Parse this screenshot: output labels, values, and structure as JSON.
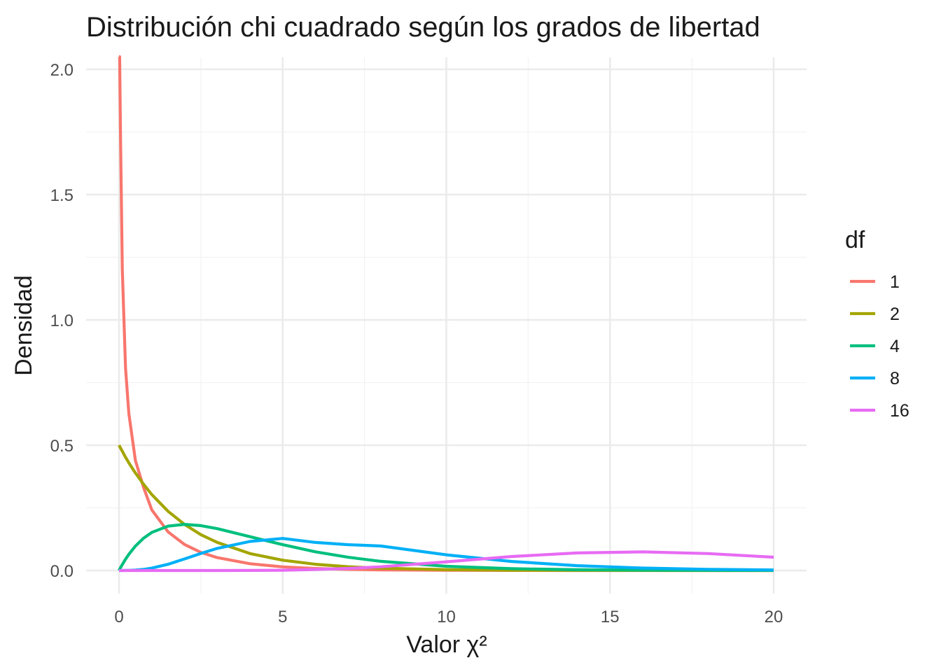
{
  "chart_data": {
    "type": "line",
    "title": "Distribución chi cuadrado según los grados de libertad",
    "xlabel": "Valor χ²",
    "ylabel": "Densidad",
    "xlim": [
      0,
      20
    ],
    "ylim": [
      0,
      2.05
    ],
    "x_ticks": [
      0,
      5,
      10,
      15,
      20
    ],
    "x_tick_labels": [
      "0",
      "5",
      "10",
      "15",
      "20"
    ],
    "y_ticks": [
      0,
      0.5,
      1.0,
      1.5,
      2.0
    ],
    "y_tick_labels": [
      "0.0",
      "0.5",
      "1.0",
      "1.5",
      "2.0"
    ],
    "grid": true,
    "legend": {
      "title": "df",
      "position": "right"
    },
    "series": [
      {
        "name": "1",
        "df": 1,
        "color": "#F8766D"
      },
      {
        "name": "2",
        "df": 2,
        "color": "#A3A500"
      },
      {
        "name": "4",
        "df": 4,
        "color": "#00BF7D"
      },
      {
        "name": "8",
        "df": 8,
        "color": "#00B0F6"
      },
      {
        "name": "16",
        "df": 16,
        "color": "#E76BF3"
      }
    ],
    "x": [
      0,
      0.02,
      0.05,
      0.1,
      0.2,
      0.3,
      0.5,
      0.75,
      1,
      1.5,
      2,
      2.5,
      3,
      4,
      5,
      6,
      7,
      8,
      10,
      12,
      14,
      16,
      18,
      20
    ],
    "y_values": {
      "1": [
        2.05,
        2.05,
        1.7,
        1.2,
        0.808,
        0.627,
        0.439,
        0.331,
        0.242,
        0.154,
        0.104,
        0.0723,
        0.0514,
        0.027,
        0.0146,
        0.0081,
        0.0046,
        0.0026,
        0.00085,
        0.00029,
        0.0001,
        3e-05,
        1e-05,
        0.0
      ],
      "2": [
        0.5,
        0.495,
        0.488,
        0.476,
        0.452,
        0.43,
        0.389,
        0.344,
        0.303,
        0.236,
        0.184,
        0.143,
        0.112,
        0.0677,
        0.041,
        0.0249,
        0.0151,
        0.0092,
        0.0034,
        0.0012,
        0.00046,
        0.00017,
        6e-05,
        2e-05
      ],
      "4": [
        0,
        0.005,
        0.0122,
        0.0238,
        0.0452,
        0.0646,
        0.0974,
        0.129,
        0.152,
        0.177,
        0.184,
        0.179,
        0.167,
        0.135,
        0.103,
        0.0747,
        0.0528,
        0.0366,
        0.0168,
        0.0074,
        0.0032,
        0.0013,
        0.0006,
        0.0002
      ],
      "8": [
        0,
        0.0,
        0.0,
        2e-05,
        0.00015,
        0.0005,
        0.0016,
        0.0045,
        0.0095,
        0.0249,
        0.046,
        0.0682,
        0.0882,
        0.116,
        0.128,
        0.112,
        0.103,
        0.0977,
        0.0627,
        0.0361,
        0.0194,
        0.0099,
        0.0048,
        0.0023
      ],
      "16": [
        0,
        0,
        0,
        0,
        0,
        0,
        0,
        0,
        0,
        0,
        1e-05,
        4e-05,
        0.0001,
        0.0004,
        0.0012,
        0.0041,
        0.0084,
        0.0149,
        0.0345,
        0.0559,
        0.0702,
        0.0744,
        0.0677,
        0.0531
      ]
    }
  }
}
